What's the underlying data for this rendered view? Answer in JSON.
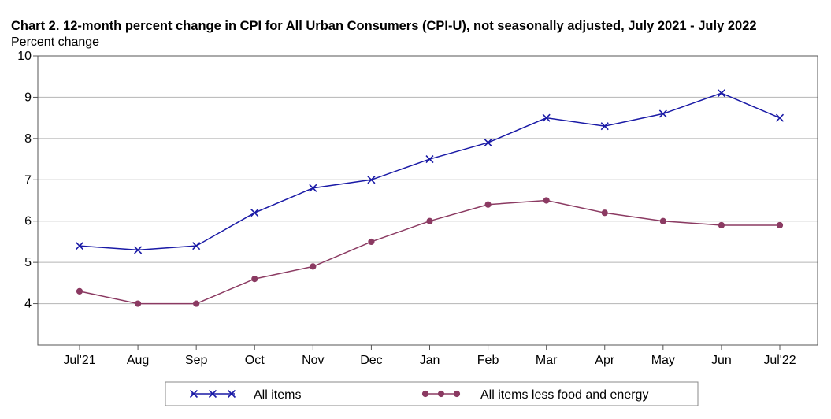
{
  "chart_data": {
    "type": "line",
    "title": "Chart 2. 12-month percent change in CPI for All Urban Consumers (CPI-U), not seasonally adjusted, July 2021 - July 2022",
    "ylabel": "Percent change",
    "xlabel": "",
    "ylim": [
      3,
      10
    ],
    "yticks": [
      4,
      5,
      6,
      7,
      8,
      9,
      10
    ],
    "grid": true,
    "legend_position": "bottom",
    "categories": [
      "Jul'21",
      "Aug",
      "Sep",
      "Oct",
      "Nov",
      "Dec",
      "Jan",
      "Feb",
      "Mar",
      "Apr",
      "May",
      "Jun",
      "Jul'22"
    ],
    "series": [
      {
        "name": "All items",
        "color": "#1a1aa6",
        "marker": "x",
        "values": [
          5.4,
          5.3,
          5.4,
          6.2,
          6.8,
          7.0,
          7.5,
          7.9,
          8.5,
          8.3,
          8.6,
          9.1,
          8.5
        ]
      },
      {
        "name": "All items less food and energy",
        "color": "#8b3a62",
        "marker": "circle",
        "values": [
          4.3,
          4.0,
          4.0,
          4.6,
          4.9,
          5.5,
          6.0,
          6.4,
          6.5,
          6.2,
          6.0,
          5.9,
          5.9
        ]
      }
    ]
  }
}
